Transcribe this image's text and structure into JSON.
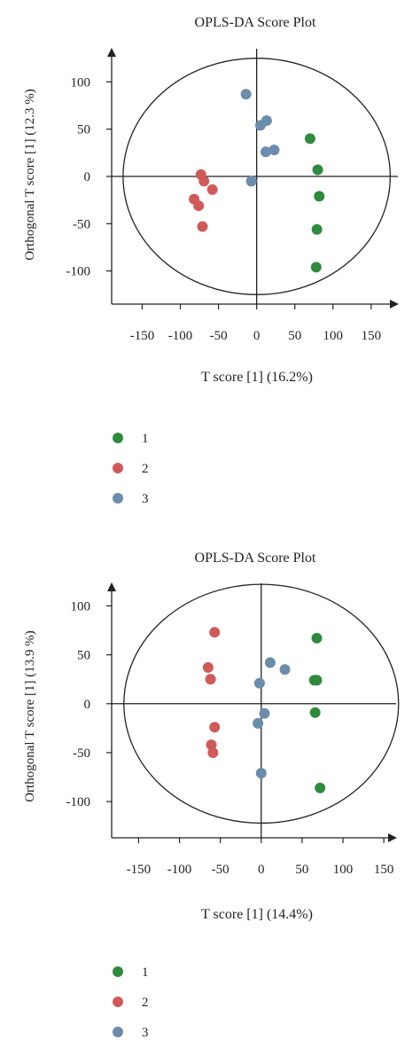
{
  "legend_colors": {
    "1": "#2e8b3e",
    "2": "#d05a5a",
    "3": "#6b8cab"
  },
  "chart_data": [
    {
      "type": "scatter",
      "title": "OPLS-DA Score Plot",
      "xlabel": "T score [1] (16.2%)",
      "ylabel": "Orthogonal T score [1] (12.3 %)",
      "xlim": [
        -190,
        185
      ],
      "ylim": [
        -135,
        135
      ],
      "xticks": [
        -150,
        -100,
        -50,
        0,
        50,
        100,
        150
      ],
      "xtick_labels": [
        "-150",
        "-100",
        "-50",
        "0",
        "50",
        "100",
        "150"
      ],
      "yticks": [
        100,
        50,
        0,
        -50,
        -100
      ],
      "ytick_labels": [
        "100",
        "50",
        "0",
        "-50",
        "-100"
      ],
      "ellipse": {
        "rx": 175,
        "ry": 125
      },
      "legend": "bottom",
      "series": [
        {
          "name": "1",
          "color": "#2e8b3e",
          "points": [
            [
              70,
              40
            ],
            [
              80,
              7
            ],
            [
              82,
              -21
            ],
            [
              79,
              -56
            ],
            [
              78,
              -96
            ]
          ]
        },
        {
          "name": "2",
          "color": "#d05a5a",
          "points": [
            [
              -73,
              2
            ],
            [
              -69,
              -5
            ],
            [
              -58,
              -14
            ],
            [
              -82,
              -24
            ],
            [
              -76,
              -31
            ],
            [
              -71,
              -53
            ]
          ]
        },
        {
          "name": "3",
          "color": "#6b8cab",
          "points": [
            [
              -14,
              87
            ],
            [
              5,
              54
            ],
            [
              13,
              59
            ],
            [
              12,
              26
            ],
            [
              23,
              28
            ],
            [
              -7,
              -5
            ]
          ]
        }
      ]
    },
    {
      "type": "scatter",
      "title": "OPLS-DA Score Plot",
      "xlabel": "T score [1] (14.4%)",
      "ylabel": "Orthogonal T score [1] (13.9 %)",
      "xlim": [
        -183,
        165
      ],
      "ylim": [
        -137,
        123
      ],
      "xticks": [
        -150,
        -100,
        -50,
        0,
        50,
        100,
        150
      ],
      "xtick_labels": [
        "-150",
        "-100",
        "-50",
        "0",
        "50",
        "100",
        "150"
      ],
      "yticks": [
        100,
        50,
        0,
        -50,
        -100
      ],
      "ytick_labels": [
        "100",
        "50",
        "0",
        "-50",
        "-100"
      ],
      "ellipse": {
        "rx": 168,
        "ry": 122
      },
      "legend": "bottom",
      "series": [
        {
          "name": "1",
          "color": "#2e8b3e",
          "points": [
            [
              68,
              67
            ],
            [
              65,
              24
            ],
            [
              68,
              24
            ],
            [
              66,
              -9
            ],
            [
              72,
              -86
            ]
          ]
        },
        {
          "name": "2",
          "color": "#d05a5a",
          "points": [
            [
              -57,
              73
            ],
            [
              -65,
              37
            ],
            [
              -62,
              25
            ],
            [
              -57,
              -24
            ],
            [
              -61,
              -42
            ],
            [
              -59,
              -50
            ]
          ]
        },
        {
          "name": "3",
          "color": "#6b8cab",
          "points": [
            [
              11,
              42
            ],
            [
              29,
              35
            ],
            [
              -2,
              21
            ],
            [
              4,
              -10
            ],
            [
              -4,
              -20
            ],
            [
              0,
              -71
            ]
          ]
        }
      ]
    }
  ]
}
